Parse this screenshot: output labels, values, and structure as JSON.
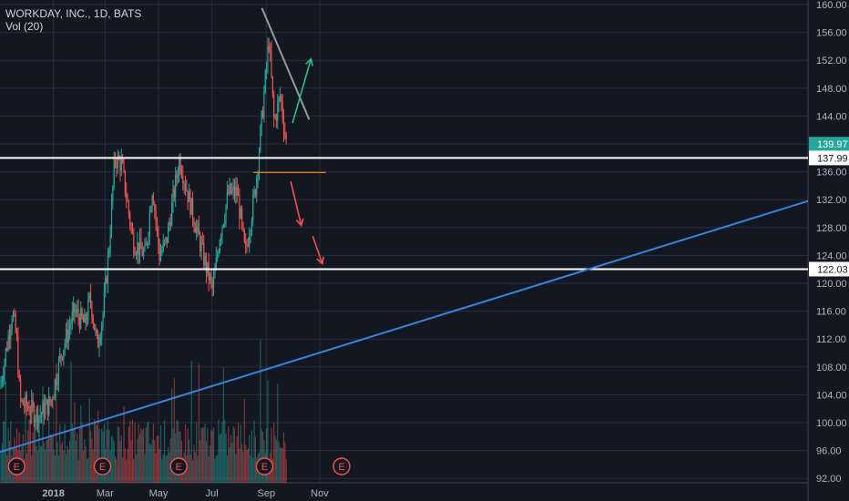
{
  "header": {
    "title": "WORKDAY, INC., 1D, BATS",
    "volume_label": "Vol (20)"
  },
  "colors": {
    "background": "#131722",
    "grid": "#2a2e39",
    "up": "#26a69a",
    "down": "#ef5350",
    "volume_up": "#26a69a",
    "volume_down": "#ef5350",
    "support_line": "#ffffff",
    "trendline_up": "#3b82d6",
    "trendline_down": "#9598a1",
    "neckline": "#f57c00",
    "arrow_bull": "#26c281",
    "arrow_bear": "#ef5350",
    "earnings_marker": "#ef5350",
    "last_price_bg": "#26a69a"
  },
  "chart_data": {
    "type": "candlestick",
    "symbol": "WORKDAY, INC.",
    "interval": "1D",
    "exchange": "BATS",
    "y_axis_ticks": [
      "160.00",
      "156.00",
      "152.00",
      "148.00",
      "144.00",
      "140.00",
      "136.00",
      "132.00",
      "128.00",
      "124.00",
      "120.00",
      "116.00",
      "112.00",
      "108.00",
      "104.00",
      "100.00",
      "96.00",
      "92.00"
    ],
    "ylim": [
      92,
      161
    ],
    "x_axis_ticks": [
      "2018",
      "Mar",
      "May",
      "Jul",
      "Sep",
      "Nov"
    ],
    "price_labels": [
      {
        "label": "139.97",
        "value": 139.97,
        "kind": "last"
      },
      {
        "label": "137.99",
        "value": 137.99,
        "kind": "line"
      },
      {
        "label": "122.03",
        "value": 122.03,
        "kind": "line"
      }
    ],
    "horizontal_lines": [
      137.99,
      122.03
    ],
    "earnings_marker_label": "E",
    "earnings_markers": [
      "2017-11-20",
      "2018-02-26",
      "2018-05-24",
      "2018-08-30",
      "2018-11-26"
    ],
    "grid": true,
    "legend": "top-left",
    "volume_series": "Vol (20)",
    "price_path": [
      [
        "2017-11-01",
        105
      ],
      [
        "2017-11-10",
        112
      ],
      [
        "2017-11-15",
        116
      ],
      [
        "2017-11-20",
        112
      ],
      [
        "2017-11-24",
        103
      ],
      [
        "2017-12-05",
        102
      ],
      [
        "2017-12-15",
        101
      ],
      [
        "2017-12-29",
        103
      ],
      [
        "2018-01-10",
        110
      ],
      [
        "2018-01-25",
        116
      ],
      [
        "2018-02-06",
        114
      ],
      [
        "2018-02-12",
        118
      ],
      [
        "2018-02-20",
        111
      ],
      [
        "2018-02-27",
        116
      ],
      [
        "2018-03-06",
        126
      ],
      [
        "2018-03-12",
        138
      ],
      [
        "2018-03-20",
        137
      ],
      [
        "2018-04-02",
        126
      ],
      [
        "2018-04-16",
        124
      ],
      [
        "2018-04-24",
        134
      ],
      [
        "2018-05-02",
        124
      ],
      [
        "2018-05-10",
        126
      ],
      [
        "2018-05-25",
        138
      ],
      [
        "2018-06-05",
        132
      ],
      [
        "2018-06-15",
        127
      ],
      [
        "2018-06-25",
        122
      ],
      [
        "2018-07-02",
        119
      ],
      [
        "2018-07-10",
        127
      ],
      [
        "2018-07-20",
        133
      ],
      [
        "2018-07-30",
        133
      ],
      [
        "2018-08-08",
        124
      ],
      [
        "2018-08-20",
        134
      ],
      [
        "2018-08-28",
        145
      ],
      [
        "2018-09-04",
        155
      ],
      [
        "2018-09-10",
        143
      ],
      [
        "2018-09-17",
        147
      ],
      [
        "2018-09-24",
        140
      ]
    ]
  }
}
